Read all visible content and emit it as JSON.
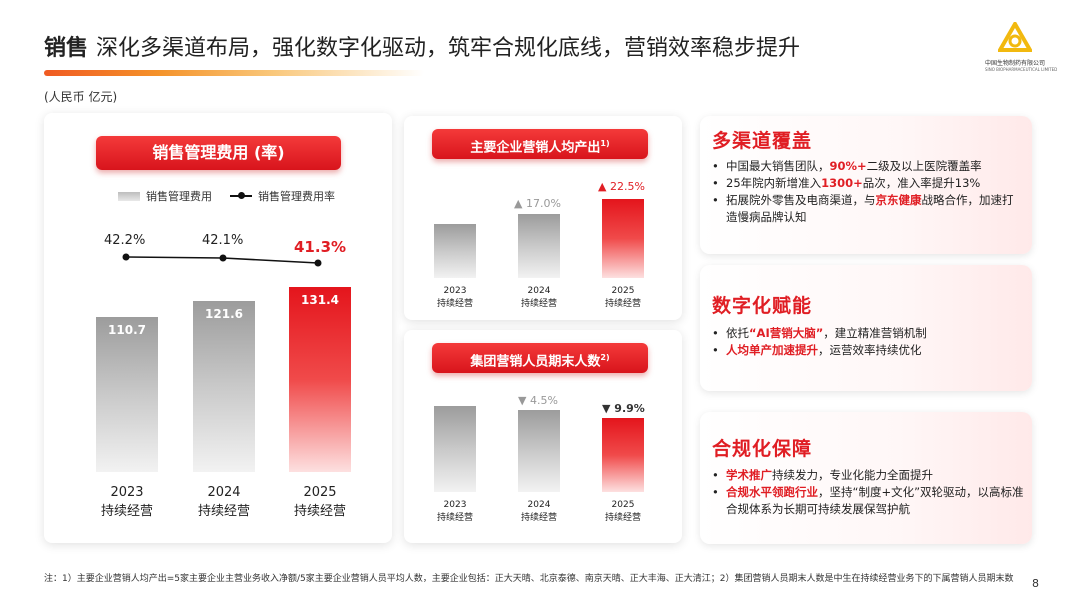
{
  "header": {
    "title_bold": "销售",
    "title_rest": "深化多渠道布局，强化数字化驱动，筑牢合规化底线，营销效率稳步提升"
  },
  "logo": {
    "name": "中国生物制药有限公司",
    "sub": "SINO BIOPHARMACEUTICAL LIMITED"
  },
  "unit": "(人民币 亿元)",
  "left_chart": {
    "title": "销售管理费用 (率)",
    "legend_bar": "销售管理费用",
    "legend_line": "销售管理费用率"
  },
  "chart_data": [
    {
      "type": "bar",
      "title": "销售管理费用 (率)",
      "series": [
        {
          "name": "销售管理费用",
          "values": [
            110.7,
            121.6,
            131.4
          ]
        },
        {
          "name": "销售管理费用率",
          "values": [
            42.2,
            42.1,
            41.3
          ]
        }
      ],
      "categories": [
        "2023",
        "2024",
        "2025"
      ],
      "category_sub": "持续经营",
      "rate_labels": [
        "42.2%",
        "42.1%",
        "41.3%"
      ],
      "value_labels": [
        "110.7",
        "121.6",
        "131.4"
      ]
    },
    {
      "type": "bar",
      "title": "主要企业营销人均产出",
      "title_sup": "1)",
      "categories": [
        "2023",
        "2024",
        "2025"
      ],
      "category_sub": "持续经营",
      "changes": [
        "▲ 17.0%",
        "▲ 22.5%"
      ]
    },
    {
      "type": "bar",
      "title": "集团营销人员期末人数",
      "title_sup": "2)",
      "categories": [
        "2023",
        "2024",
        "2025"
      ],
      "category_sub": "持续经营",
      "changes": [
        "▼ 4.5%",
        "▼ 9.9%"
      ]
    }
  ],
  "right": [
    {
      "title": "多渠道覆盖",
      "items": [
        [
          "中国最大销售团队，",
          "90%+",
          "二级及以上医院覆盖率"
        ],
        [
          "25年院内新增准入",
          "1300+",
          "品次，准入率提升13%"
        ],
        [
          "拓展院外零售及电商渠道，与",
          "京东健康",
          "战略合作，加速打造慢病品牌认知"
        ]
      ]
    },
    {
      "title": "数字化赋能",
      "items": [
        [
          "依托",
          "“AI营销大脑”",
          "，建立精准营销机制"
        ],
        [
          "",
          "人均单产加速提升",
          "，运营效率持续优化"
        ]
      ]
    },
    {
      "title": "合规化保障",
      "items": [
        [
          "",
          "学术推广",
          "持续发力，专业化能力全面提升"
        ],
        [
          "",
          "合规水平领跑行业",
          "，坚持“制度+文化”双轮驱动，以高标准合规体系为长期可持续发展保驾护航"
        ]
      ]
    }
  ],
  "note": "注：1）主要企业营销人均产出=5家主要企业主营业务收入净额/5家主要企业营销人员平均人数，主要企业包括：正大天晴、北京泰德、南京天晴、正大丰海、正大清江；2）集团营销人员期末人数是中生在持续经营业务下的下属营销人员期末数",
  "page_number": "8",
  "colors": {
    "accent_red": "#e01e24",
    "orange": "#f05a22",
    "grey_bar": "#bdbdbd"
  }
}
